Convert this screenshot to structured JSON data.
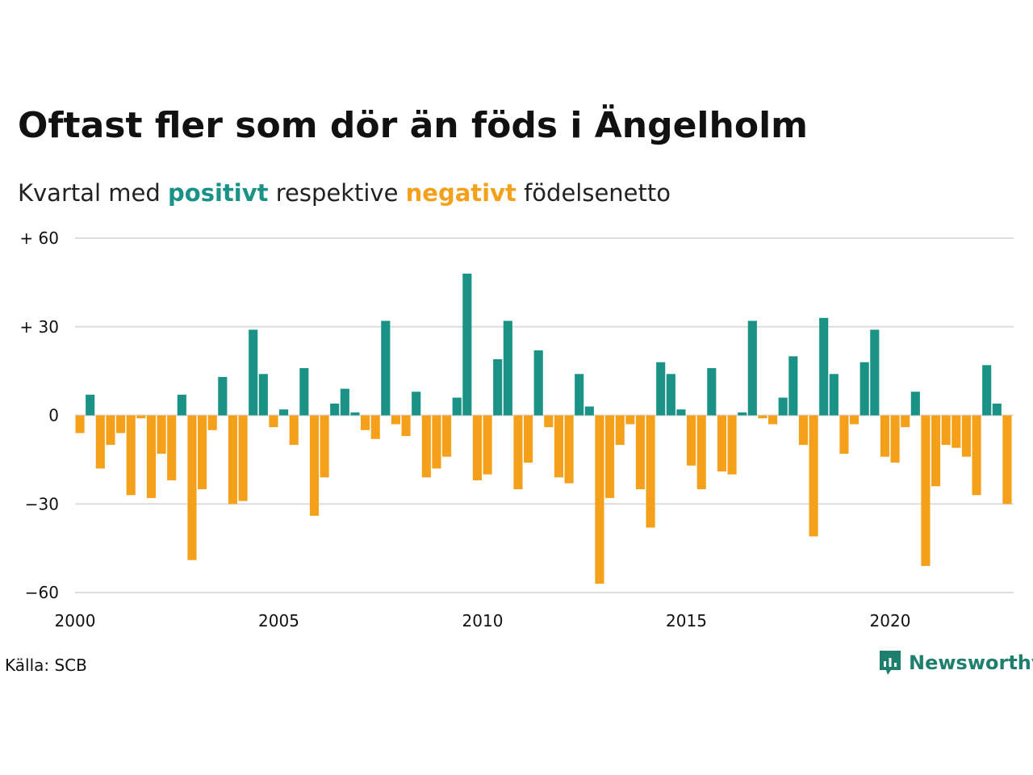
{
  "title": "Oftast fler som dör än föds i Ängelholm",
  "subtitle": {
    "part1": "Kvartal med ",
    "positive": "positivt",
    "part2": " respektive ",
    "negative": "negativt",
    "part3": " födelsenetto"
  },
  "source": "Källa: SCB",
  "brand": {
    "name": "Newsworthy",
    "icon": "newsworthy-logo-icon"
  },
  "colors": {
    "positive": "#1a9386",
    "negative": "#f5a01a",
    "grid": "#dddddd",
    "brand": "#1e7f6f"
  },
  "chart_data": {
    "type": "bar",
    "x_start": 2000,
    "period": "quarter",
    "xticks": [
      2000,
      2005,
      2010,
      2015,
      2020
    ],
    "xtick_labels": [
      "2000",
      "2005",
      "2010",
      "2015",
      "2020"
    ],
    "yticks": [
      60,
      30,
      0,
      -30,
      -60
    ],
    "ytick_labels": [
      "+ 60",
      "+ 30",
      "0",
      "−30",
      "−60"
    ],
    "ylim": [
      -60,
      60
    ],
    "grid": true,
    "values": [
      -6,
      7,
      -18,
      -10,
      -6,
      -27,
      -1,
      -28,
      -13,
      -22,
      7,
      -49,
      -25,
      -5,
      13,
      -30,
      -29,
      29,
      14,
      -4,
      2,
      -10,
      16,
      -34,
      -21,
      4,
      9,
      1,
      -5,
      -8,
      32,
      -3,
      -7,
      8,
      -21,
      -18,
      -14,
      6,
      48,
      -22,
      -20,
      19,
      32,
      -25,
      -16,
      22,
      -4,
      -21,
      -23,
      14,
      3,
      -57,
      -28,
      -10,
      -3,
      -25,
      -38,
      18,
      14,
      2,
      -17,
      -25,
      16,
      -19,
      -20,
      1,
      32,
      -1,
      -3,
      6,
      20,
      -10,
      -41,
      33,
      14,
      -13,
      -3,
      18,
      29,
      -14,
      -16,
      -4,
      8,
      -51,
      -24,
      -10,
      -11,
      -14,
      -27,
      17,
      4,
      -30
    ]
  }
}
